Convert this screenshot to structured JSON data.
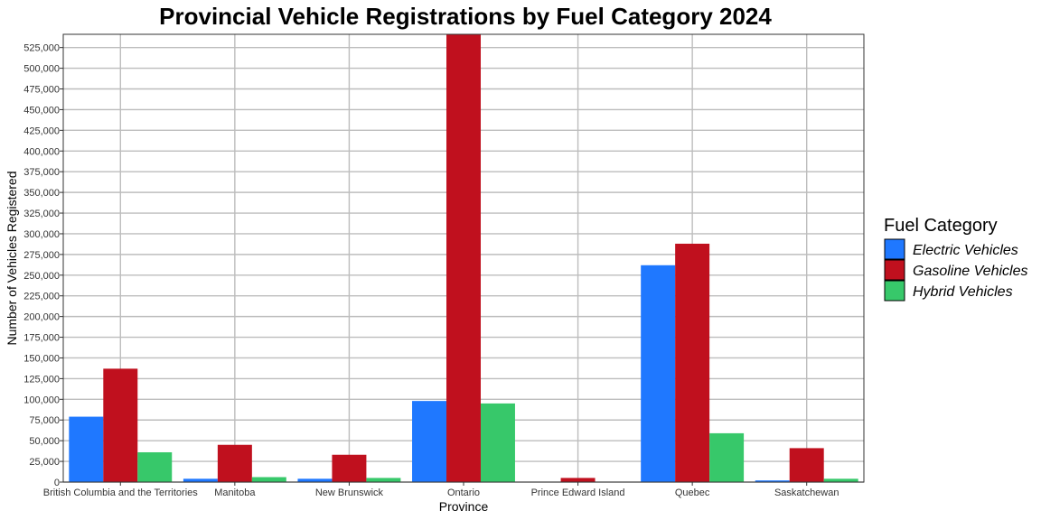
{
  "chart_data": {
    "type": "bar",
    "title": "Provincial Vehicle Registrations by Fuel Category 2024",
    "xlabel": "Province",
    "ylabel": "Number of Vehicles Registered",
    "categories": [
      "British Columbia and the Territories",
      "Manitoba",
      "New Brunswick",
      "Ontario",
      "Prince Edward Island",
      "Quebec",
      "Saskatchewan"
    ],
    "series": [
      {
        "name": "Electric Vehicles",
        "color": "#1f78ff",
        "values": [
          79000,
          4000,
          4000,
          98000,
          500,
          262000,
          2000
        ]
      },
      {
        "name": "Gasoline Vehicles",
        "color": "#c0101e",
        "values": [
          137000,
          45000,
          33000,
          541000,
          5000,
          288000,
          41000
        ]
      },
      {
        "name": "Hybrid Vehicles",
        "color": "#37c86a",
        "values": [
          36000,
          6000,
          5000,
          95000,
          500,
          59000,
          4000
        ]
      }
    ],
    "ylim": [
      0,
      541000
    ],
    "yticks": [
      0,
      25000,
      50000,
      75000,
      100000,
      125000,
      150000,
      175000,
      200000,
      225000,
      250000,
      275000,
      300000,
      325000,
      350000,
      375000,
      400000,
      425000,
      450000,
      475000,
      500000,
      525000
    ],
    "ytick_labels": [
      "0",
      "25,000",
      "50,000",
      "75,000",
      "100,000",
      "125,000",
      "150,000",
      "175,000",
      "200,000",
      "225,000",
      "250,000",
      "275,000",
      "300,000",
      "325,000",
      "350,000",
      "375,000",
      "400,000",
      "425,000",
      "450,000",
      "475,000",
      "500,000",
      "525,000"
    ],
    "grid": true,
    "legend": {
      "title": "Fuel Category",
      "position": "right"
    }
  }
}
